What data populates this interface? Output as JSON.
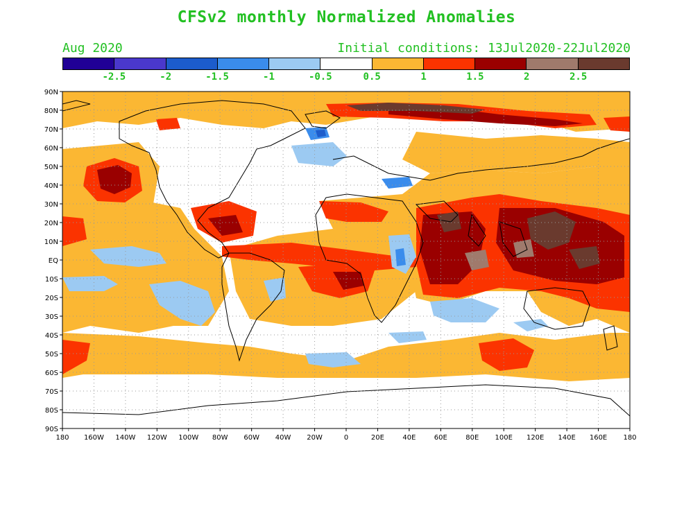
{
  "title": "CFSv2 monthly Normalized Anomalies",
  "target_month": "Aug 2020",
  "initial_conditions": "Initial conditions: 13Jul2020-22Jul2020",
  "text_color": "#22c022",
  "colorbar": {
    "colors": [
      "#200096",
      "#4a38cc",
      "#1c5ccc",
      "#3a8cec",
      "#9ccaf2",
      "#ffffff",
      "#fbb733",
      "#fb3300",
      "#9a0000",
      "#a07a6c",
      "#6a3a2e"
    ],
    "labels": [
      "-2.5",
      "-2",
      "-1.5",
      "-1",
      "-0.5",
      "0.5",
      "1",
      "1.5",
      "2",
      "2.5"
    ]
  },
  "axes": {
    "lat_labels": [
      "90N",
      "80N",
      "70N",
      "60N",
      "50N",
      "40N",
      "30N",
      "20N",
      "10N",
      "EQ",
      "10S",
      "20S",
      "30S",
      "40S",
      "50S",
      "60S",
      "70S",
      "80S",
      "90S"
    ],
    "lon_labels": [
      "180",
      "160W",
      "140W",
      "120W",
      "100W",
      "80W",
      "60W",
      "40W",
      "20W",
      "0",
      "20E",
      "40E",
      "60E",
      "80E",
      "100E",
      "120E",
      "140E",
      "160E",
      "180"
    ]
  }
}
